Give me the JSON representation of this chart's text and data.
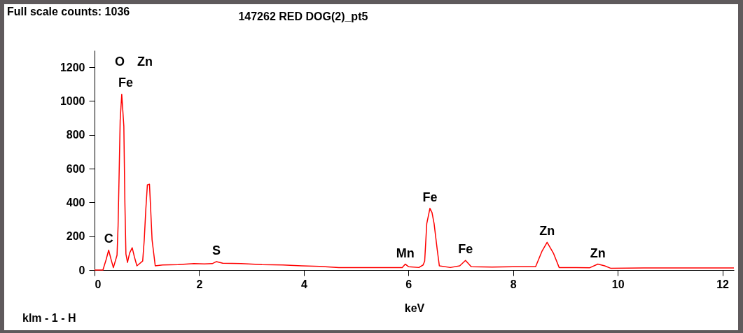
{
  "chart_data": {
    "type": "line",
    "title": "147262 RED DOG(2)_pt5",
    "xlabel": "keV",
    "annotations": [
      "Full scale counts: 1036",
      "klm - 1 - H",
      "O",
      "Zn",
      "Fe",
      {
        "text": "C",
        "x": 0.27,
        "y": 118
      },
      {
        "text": "S",
        "x": 2.33,
        "y": 50
      },
      {
        "text": "Mn",
        "x": 5.94,
        "y": 35
      },
      {
        "text": "Fe",
        "x": 6.41,
        "y": 365
      },
      {
        "text": "Fe",
        "x": 7.09,
        "y": 57
      },
      {
        "text": "Zn",
        "x": 8.65,
        "y": 164
      },
      {
        "text": "Zn",
        "x": 9.62,
        "y": 35
      }
    ],
    "series": [
      {
        "color": "#ff0000",
        "x": [
          0,
          0.16,
          0.22,
          0.27,
          0.31,
          0.36,
          0.43,
          0.45,
          0.47,
          0.49,
          0.52,
          0.56,
          0.58,
          0.6,
          0.63,
          0.67,
          0.72,
          0.76,
          0.81,
          0.92,
          0.95,
          0.98,
          1.01,
          1.05,
          1.07,
          1.1,
          1.16,
          1.3,
          1.6,
          1.9,
          2.1,
          2.25,
          2.33,
          2.45,
          2.8,
          3.2,
          3.6,
          3.96,
          4.3,
          4.67,
          5.3,
          5.88,
          5.94,
          6.0,
          6.2,
          6.28,
          6.31,
          6.35,
          6.41,
          6.45,
          6.49,
          6.55,
          6.59,
          6.8,
          6.98,
          7.09,
          7.2,
          7.6,
          8.0,
          8.43,
          8.55,
          8.65,
          8.77,
          8.88,
          9.2,
          9.46,
          9.62,
          9.75,
          9.87,
          10.5,
          11.2,
          12.22
        ],
        "values": [
          0,
          0,
          60,
          118,
          70,
          14,
          88,
          262,
          567,
          886,
          1040,
          851,
          400,
          95,
          45,
          100,
          132,
          80,
          25,
          53,
          178,
          358,
          504,
          508,
          379,
          178,
          25,
          30,
          32,
          38,
          36,
          38,
          50,
          40,
          38,
          32,
          30,
          25,
          22,
          14,
          14,
          14,
          35,
          20,
          15,
          30,
          53,
          275,
          365,
          340,
          275,
          120,
          25,
          15,
          25,
          57,
          20,
          18,
          20,
          20,
          110,
          164,
          100,
          15,
          15,
          13,
          35,
          25,
          10,
          12,
          12,
          12
        ]
      }
    ],
    "xlim": [
      0,
      12.22
    ],
    "xticks": [
      0,
      2,
      4,
      6,
      8,
      10,
      12
    ],
    "ylim": [
      0,
      1300
    ],
    "yticks": [
      0,
      200,
      400,
      600,
      800,
      1000,
      1200
    ],
    "grid": false,
    "marker": "none",
    "line_style": "solid"
  }
}
